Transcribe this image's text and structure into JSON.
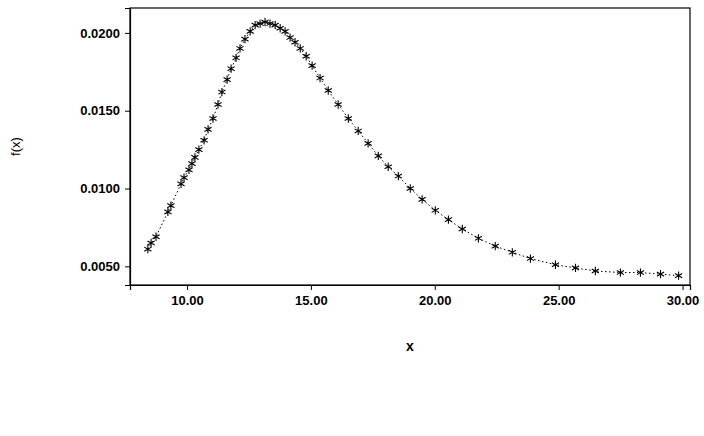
{
  "chart_data": {
    "type": "line",
    "x_label": "x",
    "y_label": "f(x)",
    "x": [
      8.42,
      8.55,
      8.75,
      9.23,
      9.35,
      9.76,
      9.88,
      10.08,
      10.2,
      10.32,
      10.48,
      10.69,
      10.85,
      11.05,
      11.25,
      11.41,
      11.62,
      11.78,
      11.98,
      12.14,
      12.34,
      12.55,
      12.75,
      12.95,
      13.15,
      13.35,
      13.56,
      13.76,
      13.96,
      14.16,
      14.36,
      14.57,
      14.81,
      15.05,
      15.37,
      15.7,
      16.1,
      16.51,
      16.91,
      17.31,
      17.72,
      18.12,
      18.53,
      19.01,
      19.49,
      20.02,
      20.55,
      21.11,
      21.76,
      22.44,
      23.13,
      23.86,
      24.87,
      25.68,
      26.48,
      27.49,
      28.3,
      29.11,
      29.84
    ],
    "values": [
      0.0061,
      0.0065,
      0.0069,
      0.0085,
      0.0089,
      0.0103,
      0.0107,
      0.0112,
      0.0116,
      0.012,
      0.0125,
      0.0131,
      0.0138,
      0.0145,
      0.0154,
      0.0162,
      0.017,
      0.0177,
      0.0184,
      0.019,
      0.0196,
      0.0201,
      0.0205,
      0.0206,
      0.0207,
      0.0206,
      0.0205,
      0.0203,
      0.0201,
      0.0197,
      0.0194,
      0.019,
      0.0185,
      0.0179,
      0.0171,
      0.0163,
      0.0154,
      0.0145,
      0.0137,
      0.0129,
      0.0121,
      0.0114,
      0.0108,
      0.01,
      0.0093,
      0.0086,
      0.008,
      0.0074,
      0.0068,
      0.0063,
      0.0059,
      0.0055,
      0.0051,
      0.0049,
      0.0047,
      0.0046,
      0.0046,
      0.0045,
      0.0044
    ],
    "color": "#000000",
    "marker": "asterisk",
    "line_style": "dotted",
    "xlim": [
      7.7,
      30.3
    ],
    "ylim": [
      0.0038,
      0.0216
    ],
    "xticks": [
      {
        "value": 10,
        "label": "10.00"
      },
      {
        "value": 15,
        "label": "15.00"
      },
      {
        "value": 20,
        "label": "20.00"
      },
      {
        "value": 25,
        "label": "25.00"
      },
      {
        "value": 30,
        "label": "30.00"
      }
    ],
    "yticks": [
      {
        "value": 0.005,
        "label": "0.0050"
      },
      {
        "value": 0.01,
        "label": "0.0100"
      },
      {
        "value": 0.015,
        "label": "0.0150"
      },
      {
        "value": 0.02,
        "label": "0.0200"
      }
    ]
  }
}
